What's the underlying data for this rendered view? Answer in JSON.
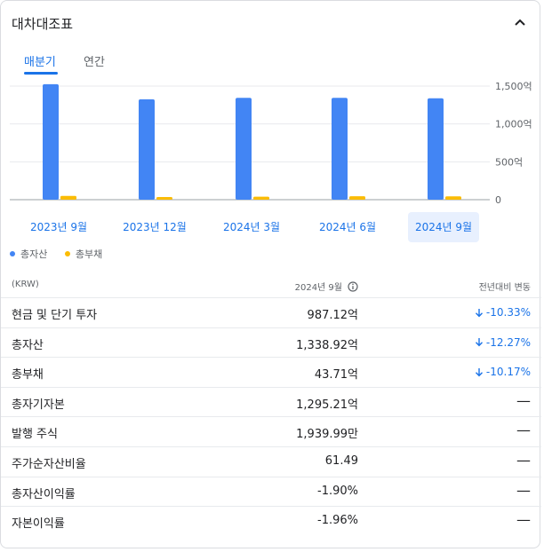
{
  "header": {
    "title": "대차대조표"
  },
  "tabs": [
    {
      "label": "매분기",
      "active": true
    },
    {
      "label": "연간",
      "active": false
    }
  ],
  "chart_data": {
    "type": "bar",
    "categories": [
      "2023년 9월",
      "2023년 12월",
      "2024년 3월",
      "2024년 6월",
      "2024년 9월"
    ],
    "series": [
      {
        "name": "총자산",
        "color": "#4285f4",
        "values": [
          1525,
          1325,
          1345,
          1345,
          1338.92
        ]
      },
      {
        "name": "총부채",
        "color": "#fbbc04",
        "values": [
          50,
          30,
          40,
          45,
          43.71
        ]
      }
    ],
    "yticks": [
      "1,500억",
      "1,000억",
      "500억",
      "0"
    ],
    "ylim": [
      0,
      1500
    ],
    "selected_index": 4
  },
  "legend": [
    {
      "label": "총자산",
      "color": "#4285f4"
    },
    {
      "label": "총부채",
      "color": "#fbbc04"
    }
  ],
  "table": {
    "header": {
      "unit": "(KRW)",
      "period": "2024년 9월",
      "change": "전년대비 변동"
    },
    "rows": [
      {
        "label": "현금 및 단기 투자",
        "value": "987.12억",
        "change": "-10.33%",
        "trend": "down"
      },
      {
        "label": "총자산",
        "value": "1,338.92억",
        "change": "-12.27%",
        "trend": "down"
      },
      {
        "label": "총부채",
        "value": "43.71억",
        "change": "-10.17%",
        "trend": "down"
      },
      {
        "label": "총자기자본",
        "value": "1,295.21억",
        "change": "—",
        "trend": "none"
      },
      {
        "label": "발행 주식",
        "value": "1,939.99만",
        "change": "—",
        "trend": "none"
      },
      {
        "label": "주가순자산비율",
        "value": "61.49",
        "change": "—",
        "trend": "none"
      },
      {
        "label": "총자산이익률",
        "value": "-1.90%",
        "change": "—",
        "trend": "none"
      },
      {
        "label": "자본이익률",
        "value": "-1.96%",
        "change": "—",
        "trend": "none"
      }
    ]
  }
}
